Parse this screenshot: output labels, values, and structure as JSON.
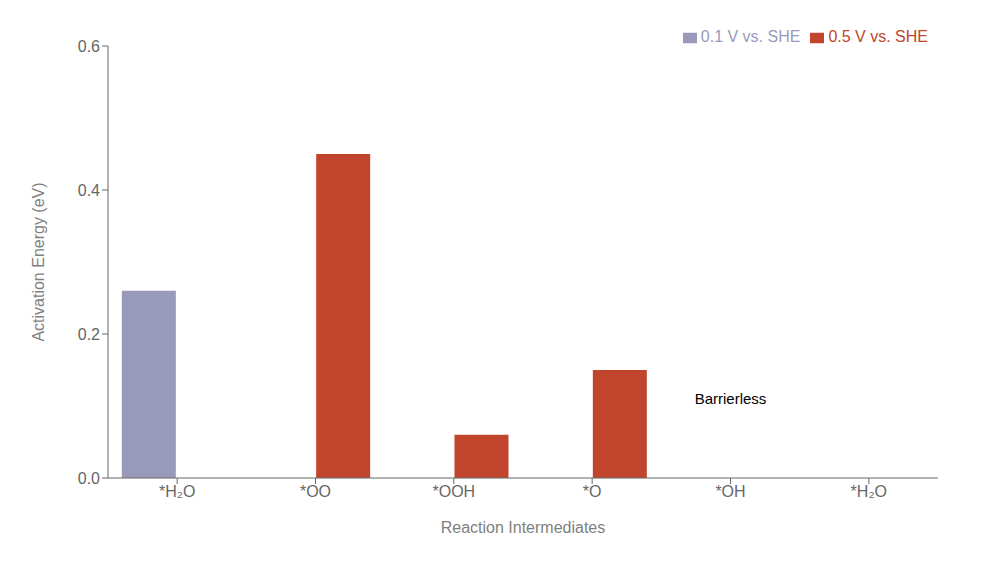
{
  "chart_data": {
    "type": "bar",
    "categories": [
      "*H₂O",
      "*OO",
      "*OOH",
      "*O",
      "*OH",
      "*H₂O"
    ],
    "series": [
      {
        "name": "0.1 V vs. SHE",
        "color": "#9999bb",
        "values": [
          0.26,
          0.0,
          0.0,
          0.0,
          0.0,
          0.0
        ]
      },
      {
        "name": "0.5 V vs. SHE",
        "color": "#c1442c",
        "values": [
          0.0,
          0.45,
          0.06,
          0.15,
          0.0,
          0.0
        ]
      }
    ],
    "xlabel": "Reaction Intermediates",
    "ylabel": "Activation Energy (eV)",
    "ylim": [
      0.0,
      0.6
    ],
    "yticks": [
      {
        "value": 0.0,
        "label": "0.0"
      },
      {
        "value": 0.2,
        "label": "0.2"
      },
      {
        "value": 0.4,
        "label": "0.4"
      },
      {
        "value": 0.6,
        "label": "0.6"
      }
    ],
    "annotations": [
      {
        "text": "Barrierless",
        "x": 4,
        "y": 0.11
      }
    ],
    "legend": "upper right",
    "grid": false
  }
}
